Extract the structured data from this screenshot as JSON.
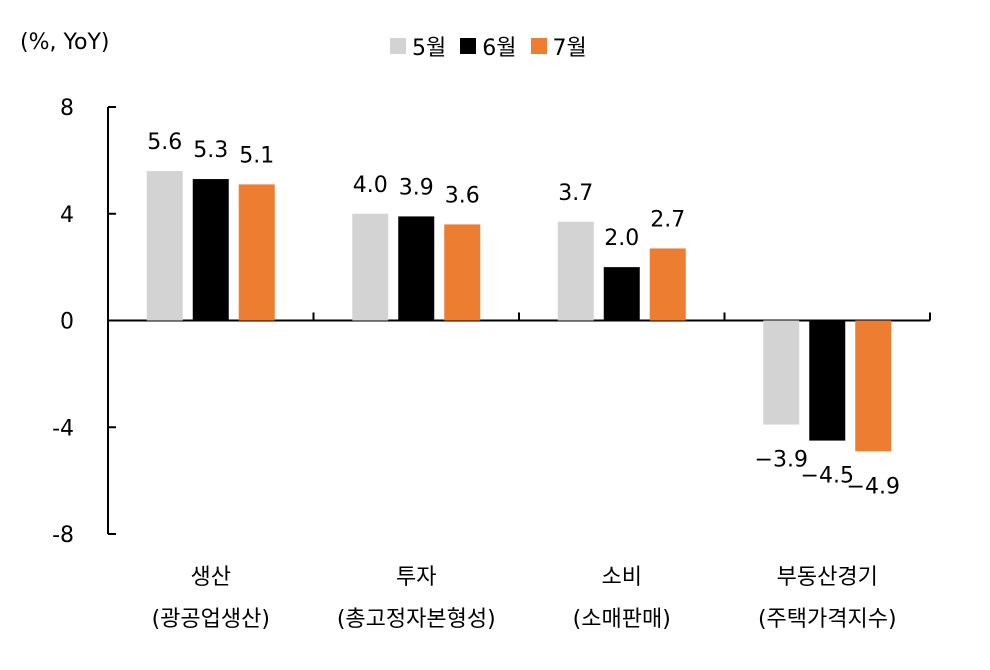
{
  "chart_data": {
    "type": "bar",
    "unit_label": "(%, YoY)",
    "ylim": [
      -8,
      8
    ],
    "yticks": [
      8,
      4,
      0,
      -4,
      -8
    ],
    "ytick_labels": [
      "8",
      "4",
      "0",
      "-4",
      "-8"
    ],
    "categories": [
      {
        "line1": "생산",
        "line2": "(광공업생산)"
      },
      {
        "line1": "투자",
        "line2": "(총고정자본형성)"
      },
      {
        "line1": "소비",
        "line2": "(소매판매)"
      },
      {
        "line1": "부동산경기",
        "line2": "(주택가격지수)"
      }
    ],
    "series": [
      {
        "name": "5월",
        "color": "#d3d3d3",
        "values": [
          5.6,
          4.0,
          3.7,
          -3.9
        ]
      },
      {
        "name": "6월",
        "color": "#000000",
        "values": [
          5.3,
          3.9,
          2.0,
          -4.5
        ]
      },
      {
        "name": "7월",
        "color": "#ed7d31",
        "values": [
          5.1,
          3.6,
          2.7,
          -4.9
        ]
      }
    ],
    "value_labels": [
      [
        "5.6",
        "4.0",
        "3.7",
        "−3.9"
      ],
      [
        "5.3",
        "3.9",
        "2.0",
        "−4.5"
      ],
      [
        "5.1",
        "3.6",
        "2.7",
        "−4.9"
      ]
    ],
    "legend_position": "top-center",
    "grid": false
  }
}
